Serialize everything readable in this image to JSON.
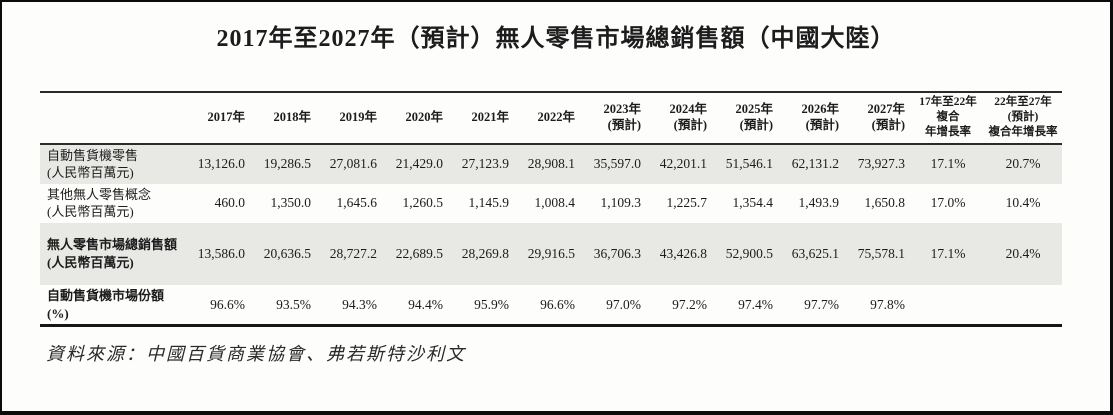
{
  "title": "2017年至2027年（預計）無人零售市場總銷售額（中國大陸）",
  "source": "資料來源：中國百貨商業協會、弗若斯特沙利文",
  "colors": {
    "shaded_row_bg": "#e8e8e5",
    "rule_color": "#2b2b2b",
    "text_color": "#1c1c1c"
  },
  "table": {
    "columns": [
      {
        "label": "2017年",
        "cagr": false
      },
      {
        "label": "2018年",
        "cagr": false
      },
      {
        "label": "2019年",
        "cagr": false
      },
      {
        "label": "2020年",
        "cagr": false
      },
      {
        "label": "2021年",
        "cagr": false
      },
      {
        "label": "2022年",
        "cagr": false
      },
      {
        "label": "2023年\n(預計)",
        "cagr": false
      },
      {
        "label": "2024年\n(預計)",
        "cagr": false
      },
      {
        "label": "2025年\n(預計)",
        "cagr": false
      },
      {
        "label": "2026年\n(預計)",
        "cagr": false
      },
      {
        "label": "2027年\n(預計)",
        "cagr": false
      },
      {
        "label": "17年至22年\n複合\n年增長率",
        "cagr": true
      },
      {
        "label": "22年至27年\n(預計)\n複合年增長率",
        "cagr": true
      }
    ],
    "rows": [
      {
        "label": "自動售貨機零售\n(人民幣百萬元)",
        "shaded": true,
        "bold": false,
        "values": [
          "13,126.0",
          "19,286.5",
          "27,081.6",
          "21,429.0",
          "27,123.9",
          "28,908.1",
          "35,597.0",
          "42,201.1",
          "51,546.1",
          "62,131.2",
          "73,927.3",
          "17.1%",
          "20.7%"
        ]
      },
      {
        "label": "其他無人零售概念\n(人民幣百萬元)",
        "shaded": false,
        "bold": false,
        "values": [
          "460.0",
          "1,350.0",
          "1,645.6",
          "1,260.5",
          "1,145.9",
          "1,008.4",
          "1,109.3",
          "1,225.7",
          "1,354.4",
          "1,493.9",
          "1,650.8",
          "17.0%",
          "10.4%"
        ]
      },
      {
        "label": "無人零售市場總銷售額\n(人民幣百萬元)",
        "shaded": true,
        "bold": true,
        "values": [
          "13,586.0",
          "20,636.5",
          "28,727.2",
          "22,689.5",
          "28,269.8",
          "29,916.5",
          "36,706.3",
          "43,426.8",
          "52,900.5",
          "63,625.1",
          "75,578.1",
          "17.1%",
          "20.4%"
        ]
      },
      {
        "label": "自動售貨機市場份額 (%)",
        "shaded": false,
        "bold": true,
        "values": [
          "96.6%",
          "93.5%",
          "94.3%",
          "94.4%",
          "95.9%",
          "96.6%",
          "97.0%",
          "97.2%",
          "97.4%",
          "97.7%",
          "97.8%",
          "",
          ""
        ]
      }
    ]
  }
}
